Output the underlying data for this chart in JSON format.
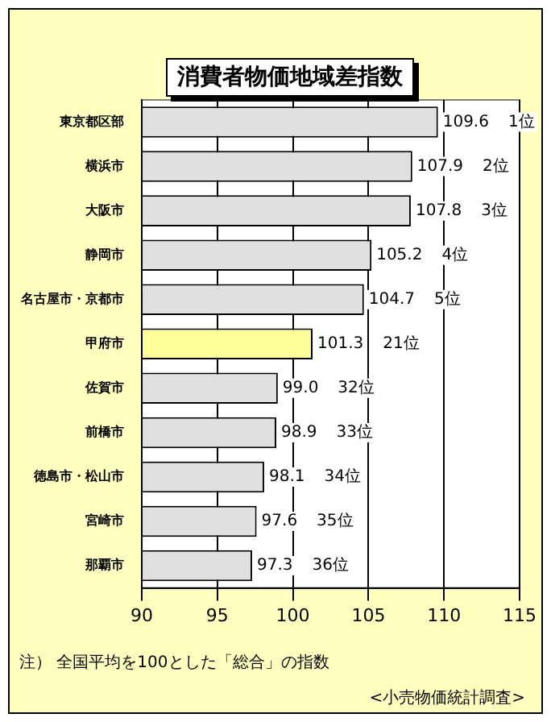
{
  "chart_data": {
    "type": "bar",
    "orientation": "horizontal",
    "title": "消費者物価地域差指数",
    "categories": [
      "東京都区部",
      "横浜市",
      "大阪市",
      "静岡市",
      "名古屋市・京都市",
      "甲府市",
      "佐賀市",
      "前橋市",
      "徳島市・松山市",
      "宮崎市",
      "那覇市"
    ],
    "values": [
      109.6,
      107.9,
      107.8,
      105.2,
      104.7,
      101.3,
      99.0,
      98.9,
      98.1,
      97.6,
      97.3
    ],
    "colors": [
      "#e0e0e0",
      "#e0e0e0",
      "#e0e0e0",
      "#e0e0e0",
      "#e0e0e0",
      "#ffff99",
      "#e0e0e0",
      "#e0e0e0",
      "#e0e0e0",
      "#e0e0e0",
      "#e0e0e0"
    ],
    "xlim": [
      90,
      115
    ],
    "xticks": [
      90,
      95,
      100,
      105,
      110,
      115
    ],
    "grid": "x",
    "legend": false,
    "value_labels": [
      "109.6",
      "107.9",
      "107.8",
      "105.2",
      "104.7",
      "101.3",
      "99.0",
      "98.9",
      "98.1",
      "97.6",
      "97.3"
    ],
    "annotations": [
      "1位",
      "2位",
      "3位",
      "4位",
      "5位",
      "21位",
      "32位",
      "33位",
      "34位",
      "35位",
      "36位",
      "注） 全国平均を100とした「総合」の指数",
      "<小売物価統計調査>"
    ]
  }
}
